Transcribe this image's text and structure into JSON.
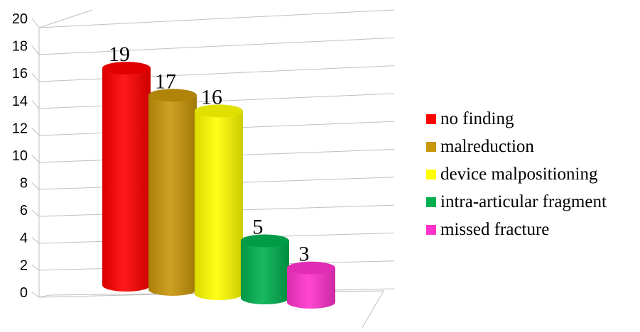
{
  "chart_data": {
    "type": "bar",
    "style": "3d-cylinder",
    "categories": [
      "no finding",
      "malreduction",
      "device malpositioning",
      "intra-articular fragment",
      "missed fracture"
    ],
    "values": [
      19,
      17,
      16,
      5,
      3
    ],
    "colors": [
      "#ff0000",
      "#c8960a",
      "#ffff00",
      "#00b050",
      "#ff33cc"
    ],
    "data_labels": [
      "19",
      "17",
      "16",
      "5",
      "3"
    ],
    "title": "",
    "xlabel": "",
    "ylabel": "",
    "ylim": [
      0,
      20
    ],
    "yticks": [
      "0",
      "2",
      "4",
      "6",
      "8",
      "10",
      "12",
      "14",
      "16",
      "18",
      "20"
    ],
    "grid": true,
    "legend_position": "right"
  }
}
